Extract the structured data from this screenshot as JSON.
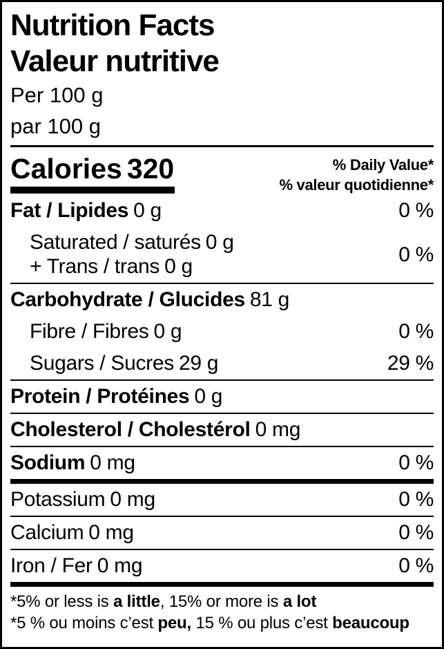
{
  "header": {
    "title_en": "Nutrition Facts",
    "title_fr": "Valeur nutritive",
    "serving_en": "Per 100 g",
    "serving_fr": "par 100 g"
  },
  "calories": {
    "label": "Calories",
    "value": "320"
  },
  "dv_header": {
    "en": "% Daily Value*",
    "fr": "% valeur quotidienne*"
  },
  "rows": {
    "fat": {
      "name": "Fat / Lipides",
      "amount": "0 g",
      "dv": "0 %",
      "bold": true
    },
    "sat_trans": {
      "line1_name": "Saturated / saturés",
      "line1_amount": "0 g",
      "line2_name": "+ Trans / trans",
      "line2_amount": "0 g",
      "dv": "0 %",
      "bold": false
    },
    "carbohydrate": {
      "name": "Carbohydrate / Glucides",
      "amount": "81 g",
      "dv": "",
      "bold": true
    },
    "fibre": {
      "name": "Fibre / Fibres",
      "amount": "0 g",
      "dv": "0 %",
      "bold": false
    },
    "sugars": {
      "name": "Sugars / Sucres",
      "amount": "29 g",
      "dv": "29 %",
      "bold": false
    },
    "protein": {
      "name": "Protein / Protéines",
      "amount": "0 g",
      "dv": "",
      "bold": true
    },
    "cholesterol": {
      "name": "Cholesterol / Cholestérol",
      "amount": "0 mg",
      "dv": "",
      "bold": true
    },
    "sodium": {
      "name": "Sodium",
      "amount": "0 mg",
      "dv": "0 %",
      "bold": true
    },
    "potassium": {
      "name": "Potassium",
      "amount": "0 mg",
      "dv": "0 %",
      "bold": false
    },
    "calcium": {
      "name": "Calcium",
      "amount": "0 mg",
      "dv": "0 %",
      "bold": false
    },
    "iron": {
      "name": "Iron / Fer",
      "amount": "0 mg",
      "dv": "0 %",
      "bold": false
    }
  },
  "footnotes": {
    "en": [
      {
        "text": "*5% or less is ",
        "bold": false
      },
      {
        "text": "a little",
        "bold": true
      },
      {
        "text": ", 15% or more is ",
        "bold": false
      },
      {
        "text": "a lot",
        "bold": true
      }
    ],
    "fr": [
      {
        "text": "*5 % ou moins c’est ",
        "bold": false
      },
      {
        "text": "peu,",
        "bold": true
      },
      {
        "text": " 15 % ou plus c’est ",
        "bold": false
      },
      {
        "text": "beaucoup",
        "bold": true
      }
    ]
  },
  "colors": {
    "ink": "#000000",
    "background": "#ffffff"
  }
}
